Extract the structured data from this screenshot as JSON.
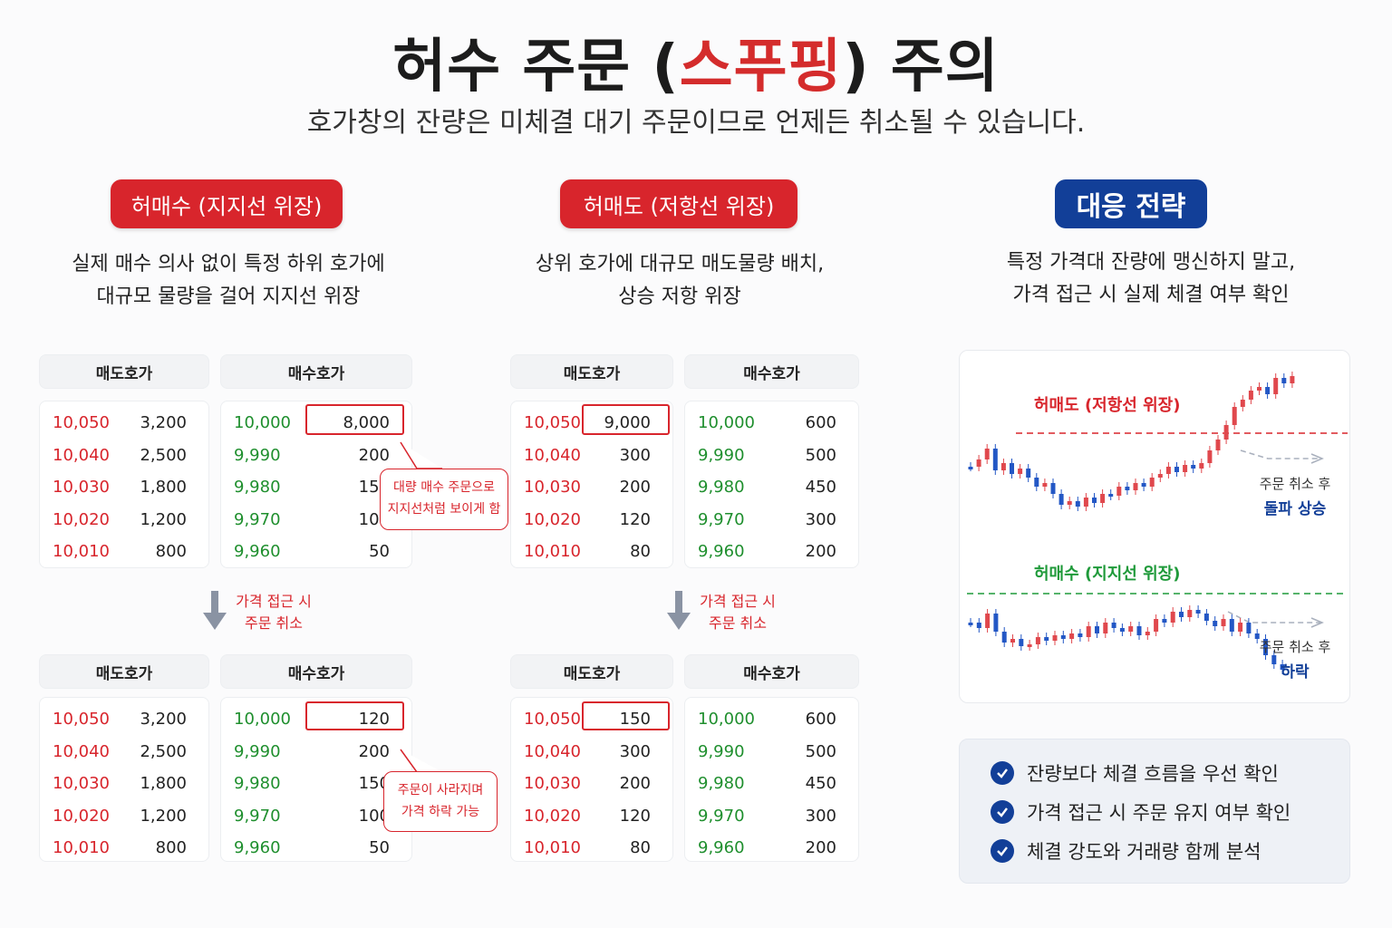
{
  "header": {
    "title_pre": "허수 주문 (",
    "title_highlight": "스푸핑",
    "title_post": ") 주의",
    "subtitle": "호가창의 잔량은 미체결 대기 주문이므로 언제든 취소될 수 있습니다."
  },
  "left_section": {
    "pill": "허매수 (지지선 위장)",
    "desc_line1": "실제 매수 의사 없이 특정 하위 호가에",
    "desc_line2": "대규모 물량을 걸어 지지선 위장"
  },
  "middle_section": {
    "pill": "허매도 (저항선 위장)",
    "desc_line1": "상위 호가에 대규모 매도물량 배치,",
    "desc_line2": "상승 저항 위장"
  },
  "right_section": {
    "pill": "대응 전략",
    "desc_line1": "특정 가격대 잔량에 맹신하지 말고,",
    "desc_line2": "가격 접근 시 실제 체결 여부 확인"
  },
  "book_headers": {
    "sell": "매도호가",
    "buy": "매수호가"
  },
  "left_before": {
    "sell": [
      [
        "10,050",
        "3,200"
      ],
      [
        "10,040",
        "2,500"
      ],
      [
        "10,030",
        "1,800"
      ],
      [
        "10,020",
        "1,200"
      ],
      [
        "10,010",
        "800"
      ]
    ],
    "buy": [
      [
        "10,000",
        "8,000"
      ],
      [
        "9,990",
        "200"
      ],
      [
        "9,980",
        "150"
      ],
      [
        "9,970",
        "100"
      ],
      [
        "9,960",
        "50"
      ]
    ]
  },
  "left_after": {
    "sell": [
      [
        "10,050",
        "3,200"
      ],
      [
        "10,040",
        "2,500"
      ],
      [
        "10,030",
        "1,800"
      ],
      [
        "10,020",
        "1,200"
      ],
      [
        "10,010",
        "800"
      ]
    ],
    "buy": [
      [
        "10,000",
        "120"
      ],
      [
        "9,990",
        "200"
      ],
      [
        "9,980",
        "150"
      ],
      [
        "9,970",
        "100"
      ],
      [
        "9,960",
        "50"
      ]
    ]
  },
  "mid_before": {
    "sell": [
      [
        "10,050",
        "9,000"
      ],
      [
        "10,040",
        "300"
      ],
      [
        "10,030",
        "200"
      ],
      [
        "10,020",
        "120"
      ],
      [
        "10,010",
        "80"
      ]
    ],
    "buy": [
      [
        "10,000",
        "600"
      ],
      [
        "9,990",
        "500"
      ],
      [
        "9,980",
        "450"
      ],
      [
        "9,970",
        "300"
      ],
      [
        "9,960",
        "200"
      ]
    ]
  },
  "mid_after": {
    "sell": [
      [
        "10,050",
        "150"
      ],
      [
        "10,040",
        "300"
      ],
      [
        "10,030",
        "200"
      ],
      [
        "10,020",
        "120"
      ],
      [
        "10,010",
        "80"
      ]
    ],
    "buy": [
      [
        "10,000",
        "600"
      ],
      [
        "9,990",
        "500"
      ],
      [
        "9,980",
        "450"
      ],
      [
        "9,970",
        "300"
      ],
      [
        "9,960",
        "200"
      ]
    ]
  },
  "callouts": {
    "top_line1": "대량 매수 주문으로",
    "top_line2": "지지선처럼 보이게 함",
    "bottom_line1": "주문이 사라지며",
    "bottom_line2": "가격 하락 가능"
  },
  "notes": {
    "left_line1": "가격 접근 시",
    "left_line2": "주문 취소",
    "mid_line1": "가격 접근 시",
    "mid_line2": "주문 취소"
  },
  "chart": {
    "resistance_label": "허매도 (저항선 위장)",
    "support_label": "허매수 (지지선 위장)",
    "top_small": "주문 취소 후",
    "top_big": "돌파 상승",
    "bottom_small": "주문 취소 후",
    "bottom_big": "하락",
    "colors": {
      "up": "#e0484d",
      "down": "#2357c5",
      "resistance": "#d8252c",
      "support": "#1f9a3a"
    }
  },
  "checklist": [
    "잔량보다 체결 흐름을 우선 확인",
    "가격 접근 시 주문 유지 여부 확인",
    "체결 강도와 거래량 함께 분석"
  ]
}
